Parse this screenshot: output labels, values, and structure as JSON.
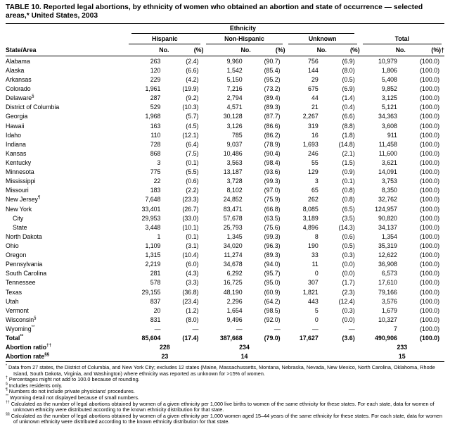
{
  "title": "TABLE 10. Reported legal abortions, by ethnicity of women who obtained an abortion and state of occurrence — selected areas,* United States, 2003",
  "table": {
    "ethnicity_header": "Ethnicity",
    "state_col_header": "State/Area",
    "groups": [
      "Hispanic",
      "Non-Hispanic",
      "Unknown",
      "Total"
    ],
    "subheaders": [
      "No.",
      "(%)",
      "No.",
      "(%)",
      "No.",
      "(%)",
      "No.",
      "(%)†"
    ],
    "rows": [
      {
        "label": "Alabama",
        "cells": [
          "263",
          "(2.4)",
          "9,960",
          "(90.7)",
          "756",
          "(6.9)",
          "10,979",
          "(100.0)"
        ]
      },
      {
        "label": "Alaska",
        "cells": [
          "120",
          "(6.6)",
          "1,542",
          "(85.4)",
          "144",
          "(8.0)",
          "1,806",
          "(100.0)"
        ]
      },
      {
        "label": "Arkansas",
        "cells": [
          "229",
          "(4.2)",
          "5,150",
          "(95.2)",
          "29",
          "(0.5)",
          "5,408",
          "(100.0)"
        ]
      },
      {
        "label": "Colorado",
        "cells": [
          "1,961",
          "(19.9)",
          "7,216",
          "(73.2)",
          "675",
          "(6.9)",
          "9,852",
          "(100.0)"
        ]
      },
      {
        "label": "Delaware",
        "sup": "§",
        "cells": [
          "287",
          "(9.2)",
          "2,794",
          "(89.4)",
          "44",
          "(1.4)",
          "3,125",
          "(100.0)"
        ]
      },
      {
        "label": "District of Columbia",
        "cells": [
          "529",
          "(10.3)",
          "4,571",
          "(89.3)",
          "21",
          "(0.4)",
          "5,121",
          "(100.0)"
        ]
      },
      {
        "label": "Georgia",
        "cells": [
          "1,968",
          "(5.7)",
          "30,128",
          "(87.7)",
          "2,267",
          "(6.6)",
          "34,363",
          "(100.0)"
        ]
      },
      {
        "label": "Hawaii",
        "cells": [
          "163",
          "(4.5)",
          "3,126",
          "(86.6)",
          "319",
          "(8.8)",
          "3,608",
          "(100.0)"
        ]
      },
      {
        "label": "Idaho",
        "cells": [
          "110",
          "(12.1)",
          "785",
          "(86.2)",
          "16",
          "(1.8)",
          "911",
          "(100.0)"
        ]
      },
      {
        "label": "Indiana",
        "cells": [
          "728",
          "(6.4)",
          "9,037",
          "(78.9)",
          "1,693",
          "(14.8)",
          "11,458",
          "(100.0)"
        ]
      },
      {
        "label": "Kansas",
        "cells": [
          "868",
          "(7.5)",
          "10,486",
          "(90.4)",
          "246",
          "(2.1)",
          "11,600",
          "(100.0)"
        ]
      },
      {
        "label": "Kentucky",
        "cells": [
          "3",
          "(0.1)",
          "3,563",
          "(98.4)",
          "55",
          "(1.5)",
          "3,621",
          "(100.0)"
        ]
      },
      {
        "label": "Minnesota",
        "cells": [
          "775",
          "(5.5)",
          "13,187",
          "(93.6)",
          "129",
          "(0.9)",
          "14,091",
          "(100.0)"
        ]
      },
      {
        "label": "Mississippi",
        "cells": [
          "22",
          "(0.6)",
          "3,728",
          "(99.3)",
          "3",
          "(0.1)",
          "3,753",
          "(100.0)"
        ]
      },
      {
        "label": "Missouri",
        "cells": [
          "183",
          "(2.2)",
          "8,102",
          "(97.0)",
          "65",
          "(0.8)",
          "8,350",
          "(100.0)"
        ]
      },
      {
        "label": "New Jersey",
        "sup": "¶",
        "cells": [
          "7,648",
          "(23.3)",
          "24,852",
          "(75.9)",
          "262",
          "(0.8)",
          "32,762",
          "(100.0)"
        ]
      },
      {
        "label": "New York",
        "cells": [
          "33,401",
          "(26.7)",
          "83,471",
          "(66.8)",
          "8,085",
          "(6.5)",
          "124,957",
          "(100.0)"
        ]
      },
      {
        "label": "City",
        "indent": true,
        "cells": [
          "29,953",
          "(33.0)",
          "57,678",
          "(63.5)",
          "3,189",
          "(3.5)",
          "90,820",
          "(100.0)"
        ]
      },
      {
        "label": "State",
        "indent": true,
        "cells": [
          "3,448",
          "(10.1)",
          "25,793",
          "(75.6)",
          "4,896",
          "(14.3)",
          "34,137",
          "(100.0)"
        ]
      },
      {
        "label": "North Dakota",
        "cells": [
          "1",
          "(0.1)",
          "1,345",
          "(99.3)",
          "8",
          "(0.6)",
          "1,354",
          "(100.0)"
        ]
      },
      {
        "label": "Ohio",
        "cells": [
          "1,109",
          "(3.1)",
          "34,020",
          "(96.3)",
          "190",
          "(0.5)",
          "35,319",
          "(100.0)"
        ]
      },
      {
        "label": "Oregon",
        "cells": [
          "1,315",
          "(10.4)",
          "11,274",
          "(89.3)",
          "33",
          "(0.3)",
          "12,622",
          "(100.0)"
        ]
      },
      {
        "label": "Pennsylvania",
        "cells": [
          "2,219",
          "(6.0)",
          "34,678",
          "(94.0)",
          "11",
          "(0.0)",
          "36,908",
          "(100.0)"
        ]
      },
      {
        "label": "South Carolina",
        "cells": [
          "281",
          "(4.3)",
          "6,292",
          "(95.7)",
          "0",
          "(0.0)",
          "6,573",
          "(100.0)"
        ]
      },
      {
        "label": "Tennessee",
        "cells": [
          "578",
          "(3.3)",
          "16,725",
          "(95.0)",
          "307",
          "(1.7)",
          "17,610",
          "(100.0)"
        ]
      },
      {
        "label": "Texas",
        "cells": [
          "29,155",
          "(36.8)",
          "48,190",
          "(60.9)",
          "1,821",
          "(2.3)",
          "79,166",
          "(100.0)"
        ]
      },
      {
        "label": "Utah",
        "cells": [
          "837",
          "(23.4)",
          "2,296",
          "(64.2)",
          "443",
          "(12.4)",
          "3,576",
          "(100.0)"
        ]
      },
      {
        "label": "Vermont",
        "cells": [
          "20",
          "(1.2)",
          "1,654",
          "(98.5)",
          "5",
          "(0.3)",
          "1,679",
          "(100.0)"
        ]
      },
      {
        "label": "Wisconsin",
        "sup": "§",
        "cells": [
          "831",
          "(8.0)",
          "9,496",
          "(92.0)",
          "0",
          "(0.0)",
          "10,327",
          "(100.0)"
        ]
      },
      {
        "label": "Wyoming",
        "sup": "**",
        "cells": [
          "—",
          "—",
          "—",
          "—",
          "—",
          "—",
          "7",
          "(100.0)"
        ]
      },
      {
        "label": "Total",
        "sup": "**",
        "bold": true,
        "cells": [
          "85,604",
          "(17.4)",
          "387,668",
          "(79.0)",
          "17,627",
          "(3.6)",
          "490,906",
          "(100.0)"
        ]
      },
      {
        "label": "Abortion ratio",
        "sup": "††",
        "bold": true,
        "span2": true,
        "cells": [
          "228",
          "234",
          "",
          "233"
        ]
      },
      {
        "label": "Abortion rate",
        "sup": "§§",
        "bold": true,
        "span2": true,
        "cells": [
          "23",
          "14",
          "",
          "15"
        ]
      }
    ]
  },
  "footnotes": [
    {
      "marker": "*",
      "text": "Data from 27 states, the District of Columbia, and New York City; excludes 12 states (Maine, Massachussetts, Montana, Nebraska, Nevada, New Mexico, North Carolina, Oklahoma, Rhode Island, South Dakota, Virginia, and Washington) where ethnicity was reported as unknown for >15% of women."
    },
    {
      "marker": "†",
      "text": "Percentages might not add to 100.0 because of rounding."
    },
    {
      "marker": "§",
      "text": "Includes residents only."
    },
    {
      "marker": "¶",
      "text": "Numbers do not include private physicians' procedures."
    },
    {
      "marker": "**",
      "text": "Wyoming detail not displayed because of small numbers."
    },
    {
      "marker": "††",
      "text": "Calculated as the number of legal abortions obtained by women of a given ethnicity per 1,000 live births to women of the same ethnicity for these states. For each state, data for women of unknown ethnicity were distributed according to the known ethnicity distribution for that state."
    },
    {
      "marker": "§§",
      "text": "Calculated as the number of legal abortions obtained by women of a given ethnicity per 1,000 women aged 15–44 years of the same ethnicity for these states. For each state, data for women of unknown ethnicity were distributed according to the known ethnicity distribution for that state."
    }
  ]
}
